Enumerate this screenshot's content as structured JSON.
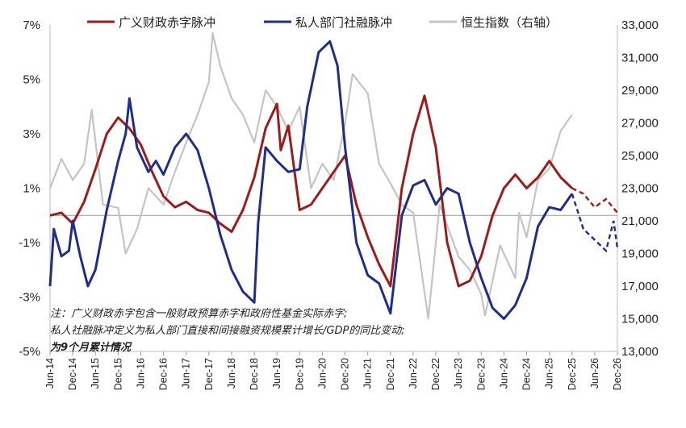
{
  "chart_data": {
    "type": "line",
    "x_axis": {
      "ticks": [
        "Jun-14",
        "Dec-14",
        "Jun-15",
        "Dec-15",
        "Jun-16",
        "Dec-16",
        "Jun-17",
        "Dec-17",
        "Jun-18",
        "Dec-18",
        "Jun-19",
        "Dec-19",
        "Jun-20",
        "Dec-20",
        "Jun-21",
        "Dec-21",
        "Jun-22",
        "Dec-22",
        "Jun-23",
        "Dec-23",
        "Jun-24",
        "Dec-24",
        "Jun-25",
        "Dec-25",
        "Jun-26",
        "Dec-26"
      ],
      "range": [
        "2014-06",
        "2026-12"
      ]
    },
    "y_left": {
      "ticks": [
        "7%",
        "5%",
        "3%",
        "1%",
        "-1%",
        "-3%",
        "-5%"
      ],
      "tick_values": [
        7,
        5,
        3,
        1,
        -1,
        -3,
        -5
      ],
      "range": [
        -5,
        7
      ],
      "zero_line": 0
    },
    "y_right": {
      "ticks": [
        "33,000",
        "31,000",
        "29,000",
        "27,000",
        "25,000",
        "23,000",
        "21,000",
        "19,000",
        "17,000",
        "15,000",
        "13,000"
      ],
      "tick_values": [
        33000,
        31000,
        29000,
        27000,
        25000,
        23000,
        21000,
        19000,
        17000,
        15000,
        13000
      ],
      "range": [
        13000,
        33000
      ]
    },
    "legend_position": "top",
    "series": [
      {
        "name": "广义财政赤字脉冲",
        "axis": "left",
        "color": "#9e1b1b",
        "points": [
          [
            "2014-06",
            0.0
          ],
          [
            "2014-09",
            0.1
          ],
          [
            "2014-12",
            -0.3
          ],
          [
            "2015-03",
            0.5
          ],
          [
            "2015-06",
            1.7
          ],
          [
            "2015-09",
            3.0
          ],
          [
            "2015-12",
            3.6
          ],
          [
            "2016-03",
            3.2
          ],
          [
            "2016-06",
            2.6
          ],
          [
            "2016-09",
            1.6
          ],
          [
            "2016-12",
            0.7
          ],
          [
            "2017-03",
            0.3
          ],
          [
            "2017-06",
            0.5
          ],
          [
            "2017-09",
            0.2
          ],
          [
            "2017-12",
            0.1
          ],
          [
            "2018-03",
            -0.3
          ],
          [
            "2018-06",
            -0.6
          ],
          [
            "2018-09",
            0.2
          ],
          [
            "2018-12",
            1.4
          ],
          [
            "2019-03",
            3.2
          ],
          [
            "2019-06",
            4.1
          ],
          [
            "2019-07",
            2.4
          ],
          [
            "2019-09",
            3.3
          ],
          [
            "2019-12",
            0.2
          ],
          [
            "2020-03",
            0.4
          ],
          [
            "2020-06",
            1.0
          ],
          [
            "2020-09",
            1.6
          ],
          [
            "2020-12",
            2.2
          ],
          [
            "2021-03",
            0.4
          ],
          [
            "2021-06",
            -0.8
          ],
          [
            "2021-09",
            -1.8
          ],
          [
            "2021-12",
            -2.6
          ],
          [
            "2022-03",
            1.0
          ],
          [
            "2022-06",
            3.0
          ],
          [
            "2022-09",
            4.4
          ],
          [
            "2022-12",
            2.5
          ],
          [
            "2023-03",
            -1.0
          ],
          [
            "2023-06",
            -2.6
          ],
          [
            "2023-09",
            -2.4
          ],
          [
            "2023-12",
            -1.5
          ],
          [
            "2024-03",
            0.0
          ],
          [
            "2024-06",
            1.0
          ],
          [
            "2024-09",
            1.5
          ],
          [
            "2024-12",
            1.0
          ],
          [
            "2025-03",
            1.4
          ],
          [
            "2025-06",
            2.0
          ],
          [
            "2025-09",
            1.4
          ],
          [
            "2025-12",
            1.0
          ]
        ],
        "forecast_points": [
          [
            "2025-12",
            1.0
          ],
          [
            "2026-03",
            0.8
          ],
          [
            "2026-06",
            0.3
          ],
          [
            "2026-09",
            0.6
          ],
          [
            "2026-12",
            0.1
          ]
        ]
      },
      {
        "name": "私人部门社融脉冲",
        "axis": "left",
        "color": "#1f2e8c",
        "points": [
          [
            "2014-06",
            -2.6
          ],
          [
            "2014-07",
            -0.5
          ],
          [
            "2014-09",
            -1.5
          ],
          [
            "2014-11",
            -1.3
          ],
          [
            "2014-12",
            -0.2
          ],
          [
            "2015-02",
            -1.5
          ],
          [
            "2015-04",
            -2.6
          ],
          [
            "2015-06",
            -2.0
          ],
          [
            "2015-09",
            0.2
          ],
          [
            "2015-12",
            2.0
          ],
          [
            "2016-02",
            3.0
          ],
          [
            "2016-03",
            4.3
          ],
          [
            "2016-05",
            2.5
          ],
          [
            "2016-08",
            1.6
          ],
          [
            "2016-10",
            2.0
          ],
          [
            "2016-12",
            1.5
          ],
          [
            "2017-03",
            2.5
          ],
          [
            "2017-06",
            3.0
          ],
          [
            "2017-09",
            2.4
          ],
          [
            "2017-12",
            1.0
          ],
          [
            "2018-03",
            -0.7
          ],
          [
            "2018-06",
            -2.0
          ],
          [
            "2018-09",
            -2.8
          ],
          [
            "2018-12",
            -3.2
          ],
          [
            "2019-01",
            -0.3
          ],
          [
            "2019-03",
            2.5
          ],
          [
            "2019-06",
            2.0
          ],
          [
            "2019-09",
            1.6
          ],
          [
            "2019-12",
            1.7
          ],
          [
            "2020-02",
            4.0
          ],
          [
            "2020-05",
            6.0
          ],
          [
            "2020-08",
            6.4
          ],
          [
            "2020-10",
            5.5
          ],
          [
            "2020-12",
            2.5
          ],
          [
            "2021-03",
            -1.0
          ],
          [
            "2021-06",
            -2.2
          ],
          [
            "2021-09",
            -2.5
          ],
          [
            "2021-12",
            -3.6
          ],
          [
            "2022-03",
            0.0
          ],
          [
            "2022-06",
            1.1
          ],
          [
            "2022-09",
            1.3
          ],
          [
            "2022-12",
            0.4
          ],
          [
            "2023-03",
            1.0
          ],
          [
            "2023-06",
            0.8
          ],
          [
            "2023-09",
            -1.0
          ],
          [
            "2023-12",
            -2.3
          ],
          [
            "2024-03",
            -3.4
          ],
          [
            "2024-06",
            -3.8
          ],
          [
            "2024-09",
            -3.3
          ],
          [
            "2024-12",
            -2.3
          ],
          [
            "2025-03",
            -0.4
          ],
          [
            "2025-06",
            0.3
          ],
          [
            "2025-09",
            0.2
          ],
          [
            "2025-12",
            0.8
          ]
        ],
        "forecast_points": [
          [
            "2025-12",
            0.8
          ],
          [
            "2026-03",
            -0.5
          ],
          [
            "2026-06",
            -0.9
          ],
          [
            "2026-09",
            -1.3
          ],
          [
            "2026-11",
            -0.2
          ],
          [
            "2026-12",
            -1.2
          ]
        ]
      },
      {
        "name": "恒生指数（右轴）",
        "axis": "right",
        "color": "#c4c4c4",
        "points": [
          [
            "2014-06",
            23000
          ],
          [
            "2014-09",
            24800
          ],
          [
            "2014-12",
            23500
          ],
          [
            "2015-03",
            24500
          ],
          [
            "2015-05",
            27800
          ],
          [
            "2015-08",
            22000
          ],
          [
            "2015-12",
            21800
          ],
          [
            "2016-02",
            19000
          ],
          [
            "2016-05",
            20500
          ],
          [
            "2016-08",
            23000
          ],
          [
            "2016-12",
            22000
          ],
          [
            "2017-03",
            24000
          ],
          [
            "2017-06",
            25800
          ],
          [
            "2017-09",
            27500
          ],
          [
            "2017-12",
            29500
          ],
          [
            "2018-01",
            32500
          ],
          [
            "2018-03",
            30500
          ],
          [
            "2018-06",
            28500
          ],
          [
            "2018-09",
            27500
          ],
          [
            "2018-12",
            25800
          ],
          [
            "2019-03",
            29000
          ],
          [
            "2019-06",
            28000
          ],
          [
            "2019-09",
            26500
          ],
          [
            "2019-12",
            28000
          ],
          [
            "2020-03",
            23000
          ],
          [
            "2020-06",
            24500
          ],
          [
            "2020-09",
            23500
          ],
          [
            "2020-12",
            27000
          ],
          [
            "2021-02",
            30000
          ],
          [
            "2021-06",
            28800
          ],
          [
            "2021-09",
            24500
          ],
          [
            "2021-12",
            23300
          ],
          [
            "2022-03",
            22000
          ],
          [
            "2022-06",
            21500
          ],
          [
            "2022-10",
            15000
          ],
          [
            "2023-01",
            22000
          ],
          [
            "2023-06",
            18800
          ],
          [
            "2023-09",
            18000
          ],
          [
            "2023-12",
            16500
          ],
          [
            "2024-01",
            15200
          ],
          [
            "2024-05",
            19500
          ],
          [
            "2024-09",
            17500
          ],
          [
            "2024-10",
            21500
          ],
          [
            "2024-12",
            20000
          ],
          [
            "2025-03",
            23500
          ],
          [
            "2025-06",
            24200
          ],
          [
            "2025-09",
            26500
          ],
          [
            "2025-12",
            27500
          ]
        ]
      }
    ]
  },
  "note": {
    "line1": "注：广义财政赤字包含一般财政预算赤字和政府性基金实际赤字;",
    "line2": "私人社融脉冲定义为私人部门直接和间接融资规模累计增长/GDP的同比变动;",
    "line3": "为9个月累计情况"
  }
}
